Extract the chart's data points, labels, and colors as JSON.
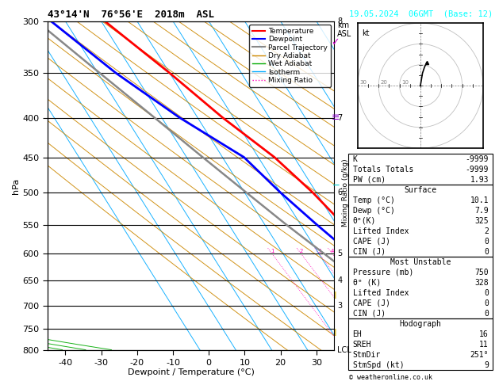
{
  "title": "43°14'N  76°56'E  2018m  ASL",
  "date_str": "19.05.2024  06GMT  (Base: 12)",
  "xlabel": "Dewpoint / Temperature (°C)",
  "ylabel_left": "hPa",
  "temp_color": "#ff0000",
  "dewp_color": "#0000ff",
  "parcel_color": "#888888",
  "dry_adiabat_color": "#cc8800",
  "wet_adiabat_color": "#00aa00",
  "isotherm_color": "#00aaff",
  "mixing_ratio_color": "#ff00bb",
  "background_color": "#ffffff",
  "temp_data": [
    [
      800,
      10.1
    ],
    [
      750,
      7.5
    ],
    [
      700,
      5.0
    ],
    [
      650,
      5.5
    ],
    [
      600,
      4.5
    ],
    [
      550,
      2.0
    ],
    [
      500,
      -1.0
    ],
    [
      450,
      -5.5
    ],
    [
      400,
      -13.0
    ],
    [
      350,
      -20.0
    ],
    [
      300,
      -29.0
    ]
  ],
  "dewp_data": [
    [
      800,
      7.9
    ],
    [
      750,
      6.0
    ],
    [
      700,
      3.5
    ],
    [
      650,
      2.0
    ],
    [
      600,
      -1.0
    ],
    [
      550,
      -5.5
    ],
    [
      500,
      -10.0
    ],
    [
      450,
      -14.0
    ],
    [
      400,
      -25.0
    ],
    [
      350,
      -35.0
    ],
    [
      300,
      -44.0
    ]
  ],
  "parcel_data": [
    [
      800,
      10.1
    ],
    [
      750,
      6.0
    ],
    [
      700,
      1.5
    ],
    [
      650,
      -3.5
    ],
    [
      600,
      -8.5
    ],
    [
      550,
      -14.0
    ],
    [
      500,
      -19.5
    ],
    [
      450,
      -25.5
    ],
    [
      400,
      -32.0
    ],
    [
      350,
      -39.5
    ],
    [
      300,
      -48.0
    ]
  ],
  "xlim": [
    -45,
    35
  ],
  "pmin": 300,
  "pmax": 800,
  "skew_factor": 45.0,
  "pressure_levels": [
    300,
    350,
    400,
    450,
    500,
    550,
    600,
    650,
    700,
    750,
    800
  ],
  "isotherm_values": [
    -60,
    -50,
    -40,
    -30,
    -20,
    -10,
    0,
    10,
    20,
    30,
    40
  ],
  "dry_adiabat_thetas": [
    -20,
    -10,
    0,
    10,
    20,
    30,
    40,
    50,
    60,
    70,
    80,
    90,
    100,
    110,
    120
  ],
  "moist_adiabat_starts": [
    -16,
    -12,
    -8,
    -4,
    0,
    4,
    8,
    12,
    16,
    20,
    24,
    28,
    32
  ],
  "mixing_ratio_lines": [
    1,
    2,
    3,
    4,
    6,
    8,
    10,
    15,
    20,
    25
  ],
  "km_labels": [
    [
      300,
      "8"
    ],
    [
      400,
      "7"
    ],
    [
      500,
      "6"
    ],
    [
      600,
      "5"
    ],
    [
      650,
      "4"
    ],
    [
      700,
      "3"
    ],
    [
      800,
      "LCL"
    ]
  ],
  "surface_temp": 10.1,
  "surface_dewp": 7.9,
  "theta_e_surface": 325,
  "lifted_index_surface": 2,
  "cape_surface": 0,
  "cin_surface": 0,
  "mu_pressure": 750,
  "theta_e_mu": 328,
  "lifted_index_mu": 0,
  "cape_mu": 0,
  "cin_mu": 0,
  "K_index": -9999,
  "totals_totals": -9999,
  "PW": 1.93,
  "EH": 16,
  "SREH": 11,
  "StmDir": 251,
  "StmSpd": 9,
  "wind_barb_colors": [
    "#cc00cc",
    "#8800cc",
    "#00cccc",
    "#ccaa00",
    "#ccaa00"
  ],
  "wind_barb_pressures": [
    320,
    400,
    490,
    680,
    760
  ]
}
